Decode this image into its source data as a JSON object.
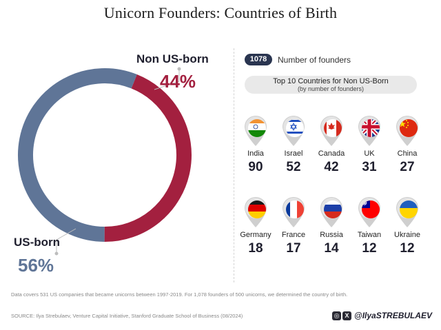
{
  "title": "Unicorn Founders: Countries of Birth",
  "chart_data": {
    "type": "pie",
    "title": "Unicorn Founders: Countries of Birth",
    "donut": true,
    "slices": [
      {
        "label": "Non US-born",
        "value": 44,
        "pct_label": "44%",
        "color": "#a3203f"
      },
      {
        "label": "US-born",
        "value": 56,
        "pct_label": "56%",
        "color": "#5f7597"
      }
    ]
  },
  "legend": {
    "badge": "1078",
    "text": "Number of founders"
  },
  "top10": {
    "title": "Top 10 Countries for Non US-Born",
    "subtitle": "(by number of founders)",
    "countries": [
      {
        "name": "India",
        "value": "90",
        "flag": "india-flag"
      },
      {
        "name": "Israel",
        "value": "52",
        "flag": "israel-flag"
      },
      {
        "name": "Canada",
        "value": "42",
        "flag": "canada-flag"
      },
      {
        "name": "UK",
        "value": "31",
        "flag": "uk-flag"
      },
      {
        "name": "China",
        "value": "27",
        "flag": "china-flag"
      },
      {
        "name": "Germany",
        "value": "18",
        "flag": "germany-flag"
      },
      {
        "name": "France",
        "value": "17",
        "flag": "france-flag"
      },
      {
        "name": "Russia",
        "value": "14",
        "flag": "russia-flag"
      },
      {
        "name": "Taiwan",
        "value": "12",
        "flag": "taiwan-flag"
      },
      {
        "name": "Ukraine",
        "value": "12",
        "flag": "ukraine-flag"
      }
    ]
  },
  "footnote": "Data covers 531 US companies that became unicorns between 1997-2019. For 1,078 founders of 500 unicorns, we determined the country of birth.",
  "source": "SOURCE: Ilya Strebulaev, Venture Capital Initiative, Stanford Graduate School of Business (08/2024)",
  "handle": {
    "text": "@IlyaSTREBULAEV",
    "icons": [
      "instagram-icon",
      "x-icon"
    ]
  }
}
